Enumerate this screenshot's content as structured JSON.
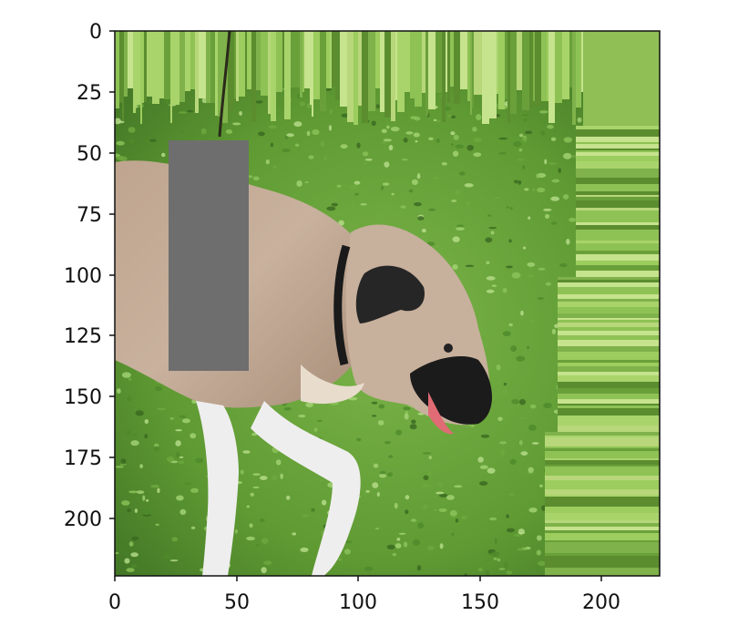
{
  "figure": {
    "axes": {
      "x_ticks": [
        "0",
        "50",
        "100",
        "150",
        "200"
      ],
      "y_ticks": [
        "0",
        "25",
        "50",
        "75",
        "100",
        "125",
        "150",
        "175",
        "200"
      ],
      "x_range": [
        0,
        224
      ],
      "y_range": [
        224,
        0
      ],
      "y_inverted": true
    },
    "image_content": {
      "subject": "dog",
      "background": "grass",
      "occlusion_patch_color": "#6e6e6e",
      "frame_color": "#111111",
      "stripe_greens": [
        "#8fc255",
        "#a9d46b",
        "#6aa03a",
        "#c6e38d",
        "#5b8d2f",
        "#b7d77a",
        "#7fb24a",
        "#9ccd5e"
      ],
      "dog_colors": {
        "coat": "#c3ab93",
        "ear": "#262626",
        "muzzle": "#1b1b1b",
        "leg": "#efeeee"
      }
    }
  }
}
